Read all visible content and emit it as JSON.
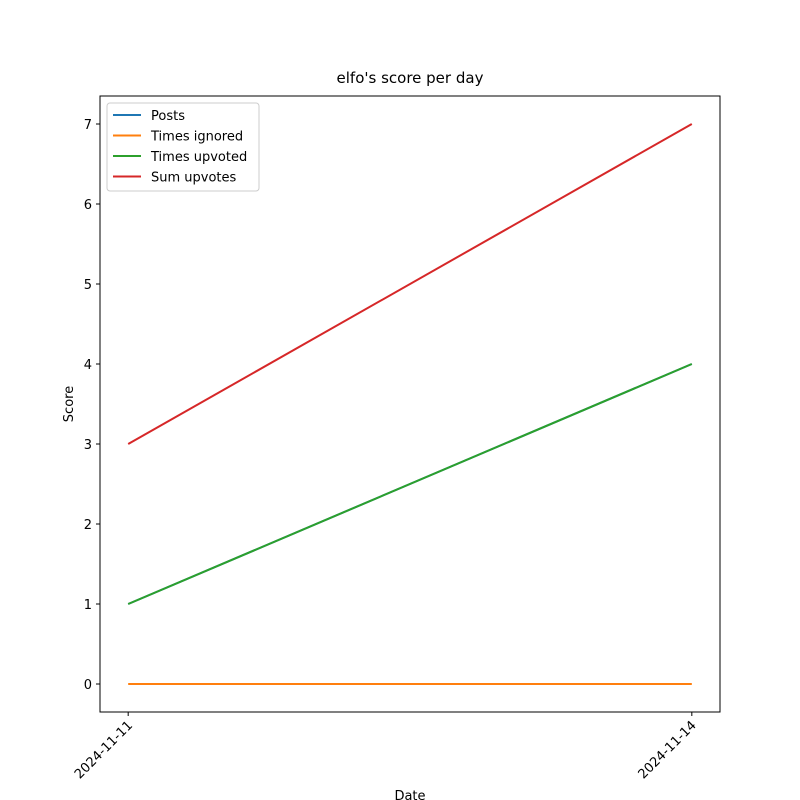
{
  "chart_data": {
    "type": "line",
    "title": "elfo's score per day",
    "xlabel": "Date",
    "ylabel": "Score",
    "x": [
      "2024-11-11",
      "2024-11-14"
    ],
    "xticks": [
      "2024-11-11",
      "2024-11-14"
    ],
    "series": [
      {
        "name": "Posts",
        "color": "#1f77b4",
        "values": [
          1,
          4
        ]
      },
      {
        "name": "Times ignored",
        "color": "#ff7f0e",
        "values": [
          0,
          0
        ]
      },
      {
        "name": "Times upvoted",
        "color": "#2ca02c",
        "values": [
          1,
          4
        ]
      },
      {
        "name": "Sum upvotes",
        "color": "#d62728",
        "values": [
          3,
          7
        ]
      }
    ],
    "ylim": [
      -0.35,
      7.35
    ],
    "yticks": [
      0,
      1,
      2,
      3,
      4,
      5,
      6,
      7
    ],
    "legend": "upper left",
    "grid": false
  }
}
